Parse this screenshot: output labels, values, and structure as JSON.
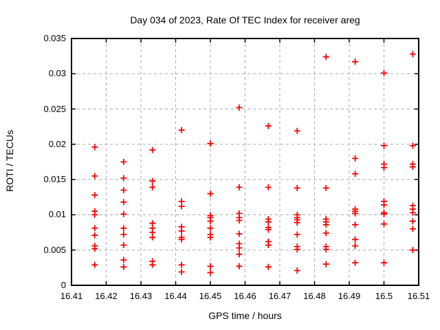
{
  "chart_data": {
    "type": "scatter",
    "title": "Day 034 of 2023, Rate Of TEC Index for receiver areg",
    "xlabel": "GPS time / hours",
    "ylabel": "ROTI / TECUs",
    "xlim": [
      16.41,
      16.51
    ],
    "ylim": [
      0,
      0.035
    ],
    "xticks": [
      16.41,
      16.42,
      16.43,
      16.44,
      16.45,
      16.46,
      16.47,
      16.48,
      16.49,
      16.5,
      16.51
    ],
    "xtick_labels": [
      "16.41",
      "16.42",
      "16.43",
      "16.44",
      "16.45",
      "16.46",
      "16.47",
      "16.48",
      "16.49",
      "16.5",
      "16.51"
    ],
    "yticks": [
      0,
      0.005,
      0.01,
      0.015,
      0.02,
      0.025,
      0.03,
      0.035
    ],
    "ytick_labels": [
      "0",
      "0.005",
      "0.01",
      "0.015",
      "0.02",
      "0.025",
      "0.03",
      "0.035"
    ],
    "grid": true,
    "legend": "none",
    "marker": "plus",
    "colors": {
      "marker": "#ff0000",
      "grid": "#a8a8a8",
      "border": "#000000",
      "background": "#ffffff"
    },
    "series": [
      {
        "name": "ROTI",
        "points": [
          [
            16.4167,
            0.0196
          ],
          [
            16.4167,
            0.0155
          ],
          [
            16.4167,
            0.0128
          ],
          [
            16.4167,
            0.0105
          ],
          [
            16.4167,
            0.01
          ],
          [
            16.4167,
            0.0081
          ],
          [
            16.4167,
            0.0071
          ],
          [
            16.4167,
            0.0056
          ],
          [
            16.4167,
            0.0052
          ],
          [
            16.4167,
            0.0029
          ],
          [
            16.425,
            0.0175
          ],
          [
            16.425,
            0.0152
          ],
          [
            16.425,
            0.0135
          ],
          [
            16.425,
            0.0118
          ],
          [
            16.425,
            0.0101
          ],
          [
            16.425,
            0.0081
          ],
          [
            16.425,
            0.0072
          ],
          [
            16.425,
            0.0057
          ],
          [
            16.425,
            0.0036
          ],
          [
            16.425,
            0.0026
          ],
          [
            16.4333,
            0.0192
          ],
          [
            16.4333,
            0.0148
          ],
          [
            16.4333,
            0.0139
          ],
          [
            16.4333,
            0.0088
          ],
          [
            16.4333,
            0.0081
          ],
          [
            16.4333,
            0.0075
          ],
          [
            16.4333,
            0.0068
          ],
          [
            16.4333,
            0.0034
          ],
          [
            16.4333,
            0.0029
          ],
          [
            16.4417,
            0.022
          ],
          [
            16.4417,
            0.0119
          ],
          [
            16.4417,
            0.0112
          ],
          [
            16.4417,
            0.0083
          ],
          [
            16.4417,
            0.0077
          ],
          [
            16.4417,
            0.0068
          ],
          [
            16.4417,
            0.0065
          ],
          [
            16.4417,
            0.0029
          ],
          [
            16.4417,
            0.0019
          ],
          [
            16.45,
            0.0201
          ],
          [
            16.45,
            0.013
          ],
          [
            16.45,
            0.0099
          ],
          [
            16.45,
            0.0096
          ],
          [
            16.45,
            0.0091
          ],
          [
            16.45,
            0.0081
          ],
          [
            16.45,
            0.0072
          ],
          [
            16.45,
            0.0068
          ],
          [
            16.45,
            0.0027
          ],
          [
            16.45,
            0.0018
          ],
          [
            16.4583,
            0.0252
          ],
          [
            16.4583,
            0.0139
          ],
          [
            16.4583,
            0.0102
          ],
          [
            16.4583,
            0.0096
          ],
          [
            16.4583,
            0.0092
          ],
          [
            16.4583,
            0.0073
          ],
          [
            16.4583,
            0.0059
          ],
          [
            16.4583,
            0.0053
          ],
          [
            16.4583,
            0.0044
          ],
          [
            16.4583,
            0.0027
          ],
          [
            16.4667,
            0.0226
          ],
          [
            16.4667,
            0.0139
          ],
          [
            16.4667,
            0.0094
          ],
          [
            16.4667,
            0.009
          ],
          [
            16.4667,
            0.0082
          ],
          [
            16.4667,
            0.0079
          ],
          [
            16.4667,
            0.0062
          ],
          [
            16.4667,
            0.0057
          ],
          [
            16.4667,
            0.0026
          ],
          [
            16.475,
            0.0219
          ],
          [
            16.475,
            0.0138
          ],
          [
            16.475,
            0.01
          ],
          [
            16.475,
            0.0096
          ],
          [
            16.475,
            0.0093
          ],
          [
            16.475,
            0.0089
          ],
          [
            16.475,
            0.0072
          ],
          [
            16.475,
            0.0055
          ],
          [
            16.475,
            0.0051
          ],
          [
            16.475,
            0.0021
          ],
          [
            16.4833,
            0.0324
          ],
          [
            16.4833,
            0.0138
          ],
          [
            16.4833,
            0.0094
          ],
          [
            16.4833,
            0.009
          ],
          [
            16.4833,
            0.0086
          ],
          [
            16.4833,
            0.0074
          ],
          [
            16.4833,
            0.0055
          ],
          [
            16.4833,
            0.0051
          ],
          [
            16.4833,
            0.003
          ],
          [
            16.4917,
            0.0317
          ],
          [
            16.4917,
            0.018
          ],
          [
            16.4917,
            0.0158
          ],
          [
            16.4917,
            0.0108
          ],
          [
            16.4917,
            0.0105
          ],
          [
            16.4917,
            0.0102
          ],
          [
            16.4917,
            0.0086
          ],
          [
            16.4917,
            0.0065
          ],
          [
            16.4917,
            0.0056
          ],
          [
            16.4917,
            0.0032
          ],
          [
            16.5,
            0.0301
          ],
          [
            16.5,
            0.0198
          ],
          [
            16.5,
            0.0172
          ],
          [
            16.5,
            0.0167
          ],
          [
            16.5,
            0.0119
          ],
          [
            16.5,
            0.0114
          ],
          [
            16.5,
            0.0103
          ],
          [
            16.5,
            0.0101
          ],
          [
            16.5,
            0.0087
          ],
          [
            16.5,
            0.0032
          ],
          [
            16.5083,
            0.0328
          ],
          [
            16.5083,
            0.0198
          ],
          [
            16.5083,
            0.0172
          ],
          [
            16.5083,
            0.0168
          ],
          [
            16.5083,
            0.0113
          ],
          [
            16.5083,
            0.0108
          ],
          [
            16.5083,
            0.0103
          ],
          [
            16.5083,
            0.0091
          ],
          [
            16.5083,
            0.008
          ],
          [
            16.5083,
            0.005
          ]
        ]
      }
    ]
  }
}
